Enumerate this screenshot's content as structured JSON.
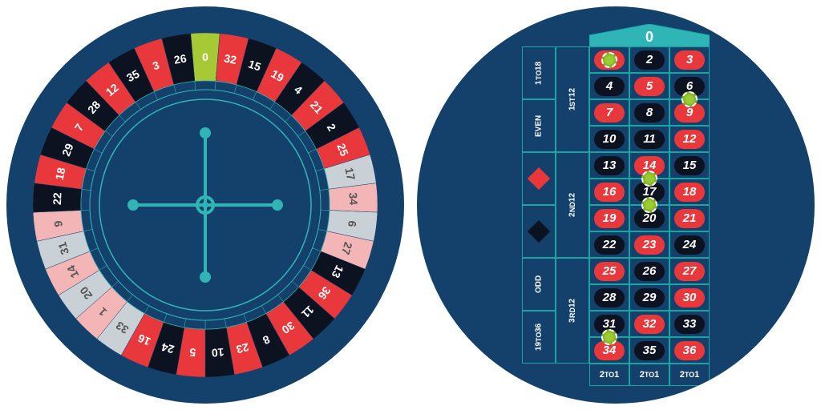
{
  "colors": {
    "bg_circle": "#14416b",
    "cell_border": "#1aa5a5",
    "red": "#e8383b",
    "black": "#0c1220",
    "green": "#a8c936",
    "highlight": "#c9d0d6",
    "faded_red": "#f4b5b6",
    "teal_accent": "#2fb5b5",
    "white": "#ffffff"
  },
  "wheel": {
    "sequence": [
      0,
      32,
      15,
      19,
      4,
      21,
      2,
      25,
      17,
      34,
      6,
      27,
      13,
      36,
      11,
      30,
      8,
      23,
      10,
      5,
      24,
      16,
      33,
      1,
      20,
      14,
      31,
      9,
      22,
      18,
      29,
      7,
      28,
      12,
      35,
      3,
      26
    ],
    "pocket_colors": {
      "0": "green",
      "32": "red",
      "15": "black",
      "19": "red",
      "4": "black",
      "21": "red",
      "2": "black",
      "25": "red",
      "17": "black",
      "34": "red",
      "6": "black",
      "27": "red",
      "13": "black",
      "36": "red",
      "11": "black",
      "30": "red",
      "8": "black",
      "23": "red",
      "10": "black",
      "5": "red",
      "24": "black",
      "16": "red",
      "33": "black",
      "1": "red",
      "20": "black",
      "14": "red",
      "31": "black",
      "9": "red",
      "22": "black",
      "18": "red",
      "29": "black",
      "7": "red",
      "28": "black",
      "12": "red",
      "35": "black",
      "3": "red",
      "26": "black"
    },
    "highlighted_slots": [
      17,
      34,
      6,
      27,
      9,
      31,
      14,
      20,
      33,
      1
    ],
    "outer_radius": 215,
    "inner_radius": 155,
    "track_radius": 144,
    "hub_radius": 132
  },
  "table": {
    "zero_label": "0",
    "outside_col1": [
      {
        "label": "1 TO 18",
        "span": 2
      },
      {
        "label": "EVEN",
        "span": 2
      },
      {
        "type": "diamond",
        "color": "red",
        "span": 2
      },
      {
        "type": "diamond",
        "color": "black",
        "span": 2
      },
      {
        "label": "ODD",
        "span": 2
      },
      {
        "label": "19 TO 36",
        "span": 2
      }
    ],
    "outside_col2": [
      {
        "label": "1ST 12",
        "span": 4
      },
      {
        "label": "2ND 12",
        "span": 4
      },
      {
        "label": "3RD 12",
        "span": 4
      }
    ],
    "grid_rows": [
      [
        {
          "n": 1,
          "c": "red"
        },
        {
          "n": 2,
          "c": "black"
        },
        {
          "n": 3,
          "c": "red"
        }
      ],
      [
        {
          "n": 4,
          "c": "black"
        },
        {
          "n": 5,
          "c": "red"
        },
        {
          "n": 6,
          "c": "black"
        }
      ],
      [
        {
          "n": 7,
          "c": "red"
        },
        {
          "n": 8,
          "c": "black"
        },
        {
          "n": 9,
          "c": "red"
        }
      ],
      [
        {
          "n": 10,
          "c": "black"
        },
        {
          "n": 11,
          "c": "black"
        },
        {
          "n": 12,
          "c": "red"
        }
      ],
      [
        {
          "n": 13,
          "c": "black"
        },
        {
          "n": 14,
          "c": "red"
        },
        {
          "n": 15,
          "c": "black"
        }
      ],
      [
        {
          "n": 16,
          "c": "red"
        },
        {
          "n": 17,
          "c": "black"
        },
        {
          "n": 18,
          "c": "red"
        }
      ],
      [
        {
          "n": 19,
          "c": "red"
        },
        {
          "n": 20,
          "c": "black"
        },
        {
          "n": 21,
          "c": "red"
        }
      ],
      [
        {
          "n": 22,
          "c": "black"
        },
        {
          "n": 23,
          "c": "red"
        },
        {
          "n": 24,
          "c": "black"
        }
      ],
      [
        {
          "n": 25,
          "c": "red"
        },
        {
          "n": 26,
          "c": "black"
        },
        {
          "n": 27,
          "c": "red"
        }
      ],
      [
        {
          "n": 28,
          "c": "black"
        },
        {
          "n": 29,
          "c": "black"
        },
        {
          "n": 30,
          "c": "red"
        }
      ],
      [
        {
          "n": 31,
          "c": "black"
        },
        {
          "n": 32,
          "c": "red"
        },
        {
          "n": 33,
          "c": "black"
        }
      ],
      [
        {
          "n": 34,
          "c": "red"
        },
        {
          "n": 35,
          "c": "black"
        },
        {
          "n": 36,
          "c": "red"
        }
      ]
    ],
    "bottom_labels": [
      "2TO1",
      "2TO1",
      "2TO1"
    ],
    "chips": [
      {
        "row": 0,
        "col": 0,
        "offset": "center"
      },
      {
        "row": 1,
        "col": 2,
        "offset": "bottom"
      },
      {
        "row": 4,
        "col": 1,
        "offset": "bottom"
      },
      {
        "row": 5,
        "col": 1,
        "offset": "bottom"
      },
      {
        "row": 10,
        "col": 0,
        "offset": "bottom"
      }
    ]
  }
}
